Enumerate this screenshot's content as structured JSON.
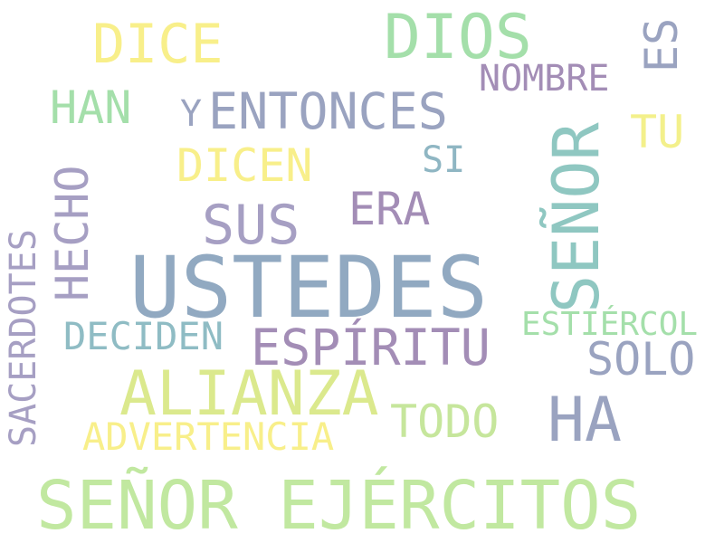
{
  "words": [
    {
      "text": "USTEDES",
      "color": "#91a9c1"
    },
    {
      "text": "SEÑOR EJÉRCITOS",
      "color": "#c1e8a0"
    },
    {
      "text": "DIOS",
      "color": "#a4dfaa"
    },
    {
      "text": "DICE",
      "color": "#f8ef8a"
    },
    {
      "text": "SEÑOR",
      "color": "#8fc7c1"
    },
    {
      "text": "ALIANZA",
      "color": "#dbe98d"
    },
    {
      "text": "HA",
      "color": "#9aa3c0"
    },
    {
      "text": "ENTONCES",
      "color": "#9aa3c0"
    },
    {
      "text": "Y",
      "color": "#9aa3c0"
    },
    {
      "text": "SUS",
      "color": "#a69fc3"
    },
    {
      "text": "HECHO",
      "color": "#a69fc3"
    },
    {
      "text": "HAN",
      "color": "#a4dfaa"
    },
    {
      "text": "ES",
      "color": "#9aa3c0"
    },
    {
      "text": "NOMBRE",
      "color": "#a38db6"
    },
    {
      "text": "TU",
      "color": "#f3f08b"
    },
    {
      "text": "DICEN",
      "color": "#f8ef8a"
    },
    {
      "text": "SI",
      "color": "#8fb6c3"
    },
    {
      "text": "ERA",
      "color": "#a38db6"
    },
    {
      "text": "SACERDOTES",
      "color": "#a69fc3"
    },
    {
      "text": "DECIDEN",
      "color": "#8fbcc4"
    },
    {
      "text": "ESPÍRITU",
      "color": "#a38db6"
    },
    {
      "text": "ESTIÉRCOL",
      "color": "#a4dfaa"
    },
    {
      "text": "SOLO",
      "color": "#9aa3c0"
    },
    {
      "text": "TODO",
      "color": "#c6e69c"
    },
    {
      "text": "ADVERTENCIA",
      "color": "#f8ef8a"
    }
  ]
}
